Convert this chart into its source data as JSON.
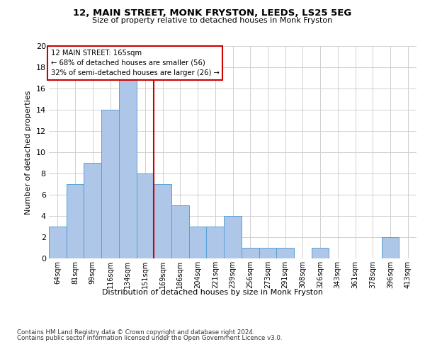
{
  "title1": "12, MAIN STREET, MONK FRYSTON, LEEDS, LS25 5EG",
  "title2": "Size of property relative to detached houses in Monk Fryston",
  "xlabel": "Distribution of detached houses by size in Monk Fryston",
  "ylabel": "Number of detached properties",
  "categories": [
    "64sqm",
    "81sqm",
    "99sqm",
    "116sqm",
    "134sqm",
    "151sqm",
    "169sqm",
    "186sqm",
    "204sqm",
    "221sqm",
    "239sqm",
    "256sqm",
    "273sqm",
    "291sqm",
    "308sqm",
    "326sqm",
    "343sqm",
    "361sqm",
    "378sqm",
    "396sqm",
    "413sqm"
  ],
  "values": [
    3,
    7,
    9,
    14,
    17,
    8,
    7,
    5,
    3,
    3,
    4,
    1,
    1,
    1,
    0,
    1,
    0,
    0,
    0,
    2,
    0
  ],
  "bar_color": "#aec6e8",
  "bar_edge_color": "#5a9fd4",
  "vline_color": "#cc0000",
  "vline_pos": 5.5,
  "annotation_line1": "12 MAIN STREET: 165sqm",
  "annotation_line2": "← 68% of detached houses are smaller (56)",
  "annotation_line3": "32% of semi-detached houses are larger (26) →",
  "annotation_box_color": "#cc0000",
  "ylim": [
    0,
    20
  ],
  "yticks": [
    0,
    2,
    4,
    6,
    8,
    10,
    12,
    14,
    16,
    18,
    20
  ],
  "footnote1": "Contains HM Land Registry data © Crown copyright and database right 2024.",
  "footnote2": "Contains public sector information licensed under the Open Government Licence v3.0.",
  "background_color": "#ffffff",
  "grid_color": "#d0d0d0"
}
